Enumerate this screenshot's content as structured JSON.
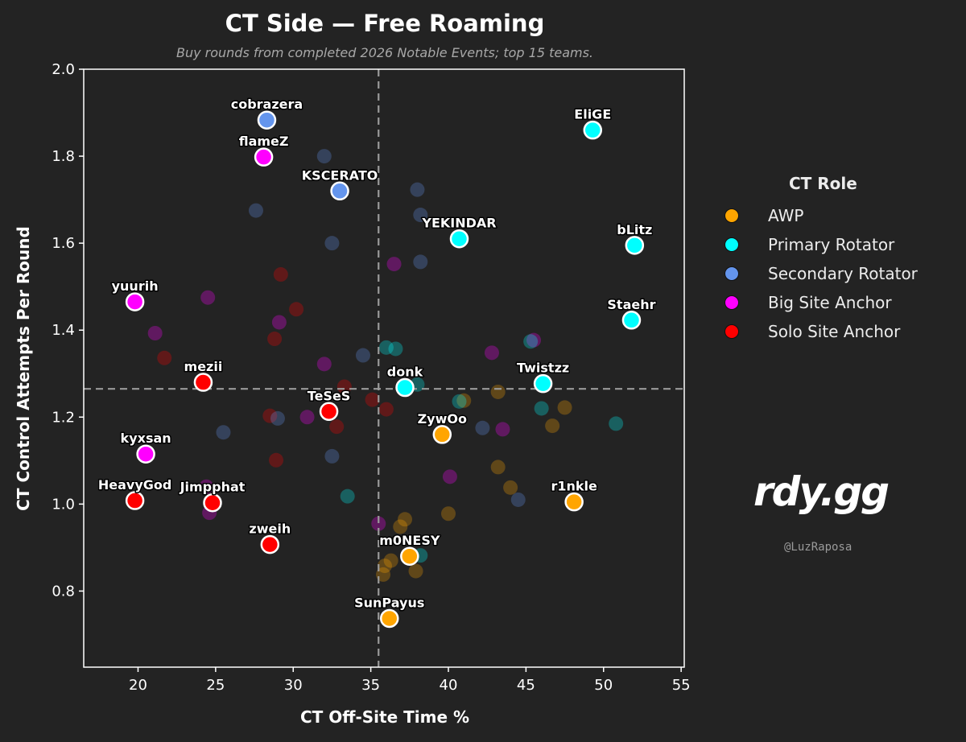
{
  "chart_data": {
    "type": "scatter",
    "title": "CT Side — Free Roaming",
    "subtitle": "Buy rounds from completed 2026 Notable Events; top 15 teams.",
    "xlabel": "CT Off-Site Time %",
    "ylabel": "CT Control Attempts Per Round",
    "xlim": [
      16.5,
      55.2
    ],
    "ylim": [
      0.625,
      2.0
    ],
    "xticks": [
      20,
      25,
      30,
      35,
      40,
      45,
      50,
      55
    ],
    "yticks": [
      0.8,
      1.0,
      1.2,
      1.4,
      1.6,
      1.8,
      2.0
    ],
    "reference_lines": {
      "x": 35.5,
      "y": 1.265
    },
    "legend_title": "CT Role",
    "roles": [
      {
        "name": "AWP",
        "color": "#FFA500"
      },
      {
        "name": "Primary Rotator",
        "color": "#00FFFF"
      },
      {
        "name": "Secondary Rotator",
        "color": "#6495ED"
      },
      {
        "name": "Big Site Anchor",
        "color": "#FF00FF"
      },
      {
        "name": "Solo Site Anchor",
        "color": "#FF0000"
      }
    ],
    "highlighted": [
      {
        "label": "cobrazera",
        "x": 28.3,
        "y": 1.883,
        "role": 2
      },
      {
        "label": "EliGE",
        "x": 49.3,
        "y": 1.86,
        "role": 1
      },
      {
        "label": "flameZ",
        "x": 28.1,
        "y": 1.798,
        "role": 3
      },
      {
        "label": "KSCERATO",
        "x": 33.0,
        "y": 1.72,
        "role": 2
      },
      {
        "label": "YEKINDAR",
        "x": 40.7,
        "y": 1.61,
        "role": 1
      },
      {
        "label": "bLitz",
        "x": 52.0,
        "y": 1.595,
        "role": 1
      },
      {
        "label": "yuurih",
        "x": 19.8,
        "y": 1.465,
        "role": 3
      },
      {
        "label": "Staehr",
        "x": 51.8,
        "y": 1.423,
        "role": 1
      },
      {
        "label": "mezii",
        "x": 24.2,
        "y": 1.28,
        "role": 4
      },
      {
        "label": "donk",
        "x": 37.2,
        "y": 1.268,
        "role": 1
      },
      {
        "label": "Twistzz",
        "x": 46.1,
        "y": 1.277,
        "role": 1
      },
      {
        "label": "TeSeS",
        "x": 32.3,
        "y": 1.213,
        "role": 4
      },
      {
        "label": "ZywOo",
        "x": 39.6,
        "y": 1.16,
        "role": 0
      },
      {
        "label": "kyxsan",
        "x": 20.5,
        "y": 1.115,
        "role": 3
      },
      {
        "label": "HeavyGod",
        "x": 19.8,
        "y": 1.008,
        "role": 4
      },
      {
        "label": "Jimpphat",
        "x": 24.8,
        "y": 1.003,
        "role": 4
      },
      {
        "label": "r1nkle",
        "x": 48.1,
        "y": 1.005,
        "role": 0
      },
      {
        "label": "zweih",
        "x": 28.5,
        "y": 0.907,
        "role": 4
      },
      {
        "label": "m0NESY",
        "x": 37.5,
        "y": 0.88,
        "role": 0
      },
      {
        "label": "SunPayus",
        "x": 36.2,
        "y": 0.737,
        "role": 0
      }
    ],
    "background": [
      {
        "x": 32.0,
        "y": 1.8,
        "role": 2
      },
      {
        "x": 27.6,
        "y": 1.675,
        "role": 2
      },
      {
        "x": 38.0,
        "y": 1.723,
        "role": 2
      },
      {
        "x": 38.2,
        "y": 1.665,
        "role": 2
      },
      {
        "x": 32.5,
        "y": 1.6,
        "role": 2
      },
      {
        "x": 38.2,
        "y": 1.557,
        "role": 2
      },
      {
        "x": 36.5,
        "y": 1.552,
        "role": 3
      },
      {
        "x": 29.2,
        "y": 1.528,
        "role": 4
      },
      {
        "x": 24.5,
        "y": 1.475,
        "role": 3
      },
      {
        "x": 30.2,
        "y": 1.448,
        "role": 4
      },
      {
        "x": 29.1,
        "y": 1.418,
        "role": 3
      },
      {
        "x": 21.1,
        "y": 1.393,
        "role": 3
      },
      {
        "x": 28.8,
        "y": 1.38,
        "role": 4
      },
      {
        "x": 45.5,
        "y": 1.377,
        "role": 3
      },
      {
        "x": 45.3,
        "y": 1.374,
        "role": 1
      },
      {
        "x": 36.0,
        "y": 1.36,
        "role": 1
      },
      {
        "x": 36.6,
        "y": 1.357,
        "role": 1
      },
      {
        "x": 42.8,
        "y": 1.348,
        "role": 3
      },
      {
        "x": 34.5,
        "y": 1.342,
        "role": 2
      },
      {
        "x": 21.7,
        "y": 1.336,
        "role": 4
      },
      {
        "x": 32.0,
        "y": 1.322,
        "role": 3
      },
      {
        "x": 38.0,
        "y": 1.275,
        "role": 1
      },
      {
        "x": 33.3,
        "y": 1.27,
        "role": 4
      },
      {
        "x": 43.2,
        "y": 1.258,
        "role": 0
      },
      {
        "x": 35.1,
        "y": 1.24,
        "role": 4
      },
      {
        "x": 41.0,
        "y": 1.238,
        "role": 0
      },
      {
        "x": 40.7,
        "y": 1.236,
        "role": 1
      },
      {
        "x": 47.5,
        "y": 1.222,
        "role": 0
      },
      {
        "x": 46.0,
        "y": 1.22,
        "role": 1
      },
      {
        "x": 36.0,
        "y": 1.218,
        "role": 4
      },
      {
        "x": 28.5,
        "y": 1.203,
        "role": 4
      },
      {
        "x": 30.9,
        "y": 1.2,
        "role": 3
      },
      {
        "x": 29.0,
        "y": 1.197,
        "role": 2
      },
      {
        "x": 46.7,
        "y": 1.18,
        "role": 0
      },
      {
        "x": 50.8,
        "y": 1.185,
        "role": 1
      },
      {
        "x": 32.8,
        "y": 1.178,
        "role": 4
      },
      {
        "x": 42.2,
        "y": 1.175,
        "role": 2
      },
      {
        "x": 43.5,
        "y": 1.172,
        "role": 3
      },
      {
        "x": 25.5,
        "y": 1.165,
        "role": 2
      },
      {
        "x": 32.5,
        "y": 1.11,
        "role": 2
      },
      {
        "x": 28.9,
        "y": 1.101,
        "role": 4
      },
      {
        "x": 43.2,
        "y": 1.085,
        "role": 0
      },
      {
        "x": 40.1,
        "y": 1.063,
        "role": 3
      },
      {
        "x": 24.4,
        "y": 1.04,
        "role": 3
      },
      {
        "x": 44.0,
        "y": 1.038,
        "role": 0
      },
      {
        "x": 33.5,
        "y": 1.018,
        "role": 1
      },
      {
        "x": 44.5,
        "y": 1.01,
        "role": 2
      },
      {
        "x": 24.6,
        "y": 0.98,
        "role": 3
      },
      {
        "x": 40.0,
        "y": 0.978,
        "role": 0
      },
      {
        "x": 37.2,
        "y": 0.965,
        "role": 0
      },
      {
        "x": 35.5,
        "y": 0.955,
        "role": 3
      },
      {
        "x": 36.9,
        "y": 0.948,
        "role": 0
      },
      {
        "x": 38.2,
        "y": 0.882,
        "role": 1
      },
      {
        "x": 36.3,
        "y": 0.87,
        "role": 0
      },
      {
        "x": 35.9,
        "y": 0.858,
        "role": 0
      },
      {
        "x": 37.9,
        "y": 0.846,
        "role": 0
      },
      {
        "x": 35.8,
        "y": 0.838,
        "role": 0
      }
    ]
  },
  "branding": {
    "logo": "rdy.gg",
    "handle": "@LuzRaposa"
  }
}
